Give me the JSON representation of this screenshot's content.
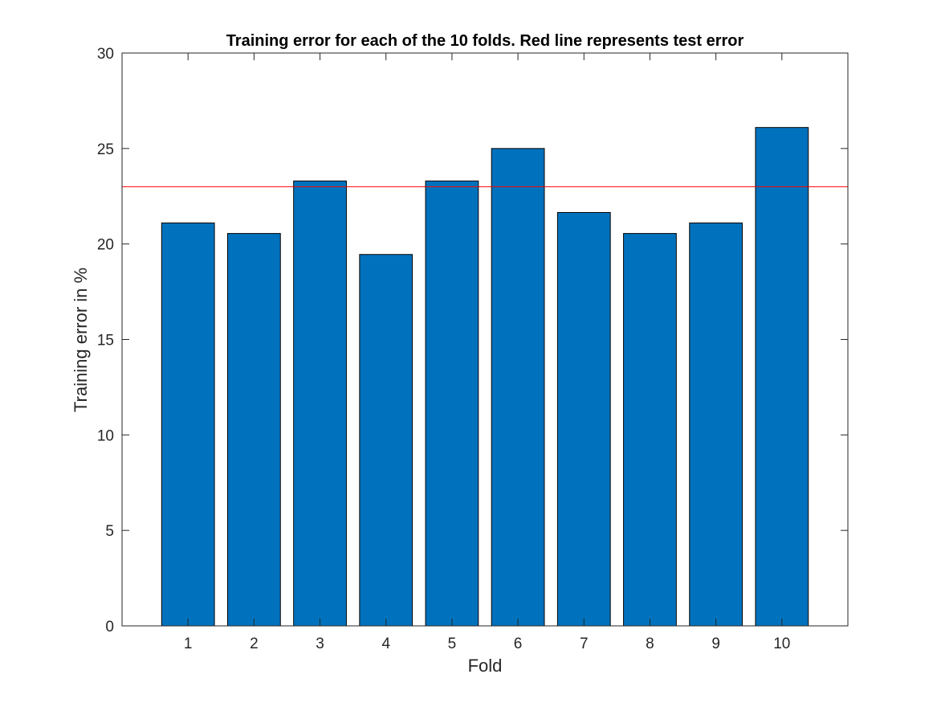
{
  "chart_data": {
    "type": "bar",
    "title": "Training error for each of the 10 folds. Red line represents test error",
    "xlabel": "Fold",
    "ylabel": "Training error in %",
    "categories": [
      "1",
      "2",
      "3",
      "4",
      "5",
      "6",
      "7",
      "8",
      "9",
      "10"
    ],
    "series": [
      {
        "values": [
          21.1,
          20.55,
          23.3,
          19.45,
          23.3,
          25.0,
          21.65,
          20.55,
          21.1,
          26.1
        ]
      }
    ],
    "reference_line": {
      "value": 23.0
    },
    "ylim": [
      0,
      30
    ],
    "yticks": [
      0,
      5,
      10,
      15,
      20,
      25,
      30
    ],
    "xlim": [
      0,
      11
    ],
    "grid": false,
    "legend": "none",
    "colors": {
      "bar_fill": "#0072BD",
      "bar_stroke": "#000000",
      "reference_line": "#FF0000",
      "axis": "#262626"
    }
  }
}
